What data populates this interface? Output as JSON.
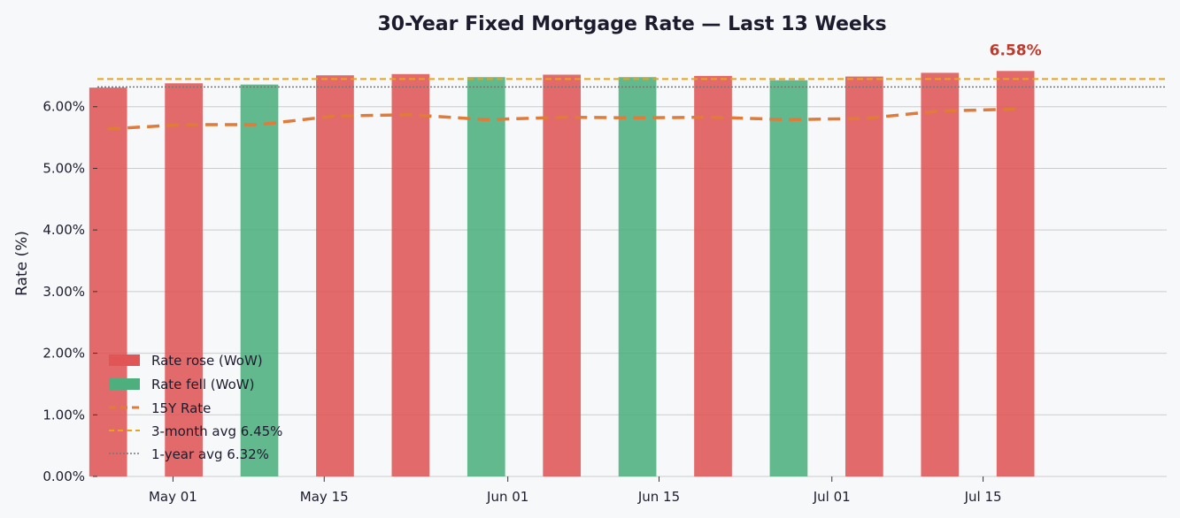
{
  "chart_data": {
    "type": "bar",
    "title": "30-Year Fixed Mortgage Rate — Last 13 Weeks",
    "ylabel": "Rate (%)",
    "xlabel": "",
    "ylim": [
      0,
      6.9
    ],
    "y_ticks": [
      0,
      1,
      2,
      3,
      4,
      5,
      6
    ],
    "y_tick_labels": [
      "0.00%",
      "1.00%",
      "2.00%",
      "3.00%",
      "4.00%",
      "5.00%",
      "6.00%"
    ],
    "x_ticks": [
      "2024-05-01",
      "2024-05-15",
      "2024-06-01",
      "2024-06-15",
      "2024-07-01",
      "2024-07-15"
    ],
    "x_tick_labels": [
      "May 01",
      "May 15",
      "Jun 01",
      "Jun 15",
      "Jul 01",
      "Jul 15"
    ],
    "x_range": [
      "2024-04-24",
      "2024-08-01"
    ],
    "dates": [
      "2024-04-25",
      "2024-05-02",
      "2024-05-09",
      "2024-05-16",
      "2024-05-23",
      "2024-05-30",
      "2024-06-06",
      "2024-06-13",
      "2024-06-20",
      "2024-06-27",
      "2024-07-04",
      "2024-07-11",
      "2024-07-18"
    ],
    "series": [
      {
        "name": "30Y Rate",
        "values": [
          6.31,
          6.38,
          6.36,
          6.51,
          6.53,
          6.48,
          6.52,
          6.48,
          6.5,
          6.43,
          6.49,
          6.55,
          6.58
        ],
        "direction": [
          "rose",
          "rose",
          "fell",
          "rose",
          "rose",
          "fell",
          "rose",
          "fell",
          "rose",
          "fell",
          "rose",
          "rose",
          "rose"
        ]
      },
      {
        "name": "15Y Rate",
        "values": [
          5.64,
          5.71,
          5.71,
          5.85,
          5.87,
          5.79,
          5.83,
          5.82,
          5.83,
          5.79,
          5.81,
          5.93,
          5.96
        ]
      }
    ],
    "reference_lines": [
      {
        "name": "3-month avg",
        "value": 6.45
      },
      {
        "name": "1-year avg",
        "value": 6.32
      }
    ],
    "last_value_label": "6.58%",
    "legend": {
      "position": "lower-left",
      "entries": [
        "Rate rose (WoW)",
        "Rate fell (WoW)",
        "15Y Rate",
        "3-month avg  6.45%",
        "1-year avg  6.32%"
      ]
    },
    "grid": "horizontal",
    "colors": {
      "rose": "#e05555",
      "fell": "#4caf7d",
      "line15": "#e07b39",
      "avg3m": "#e8a317",
      "avg1y": "#777777",
      "grid": "#cccccc"
    }
  }
}
